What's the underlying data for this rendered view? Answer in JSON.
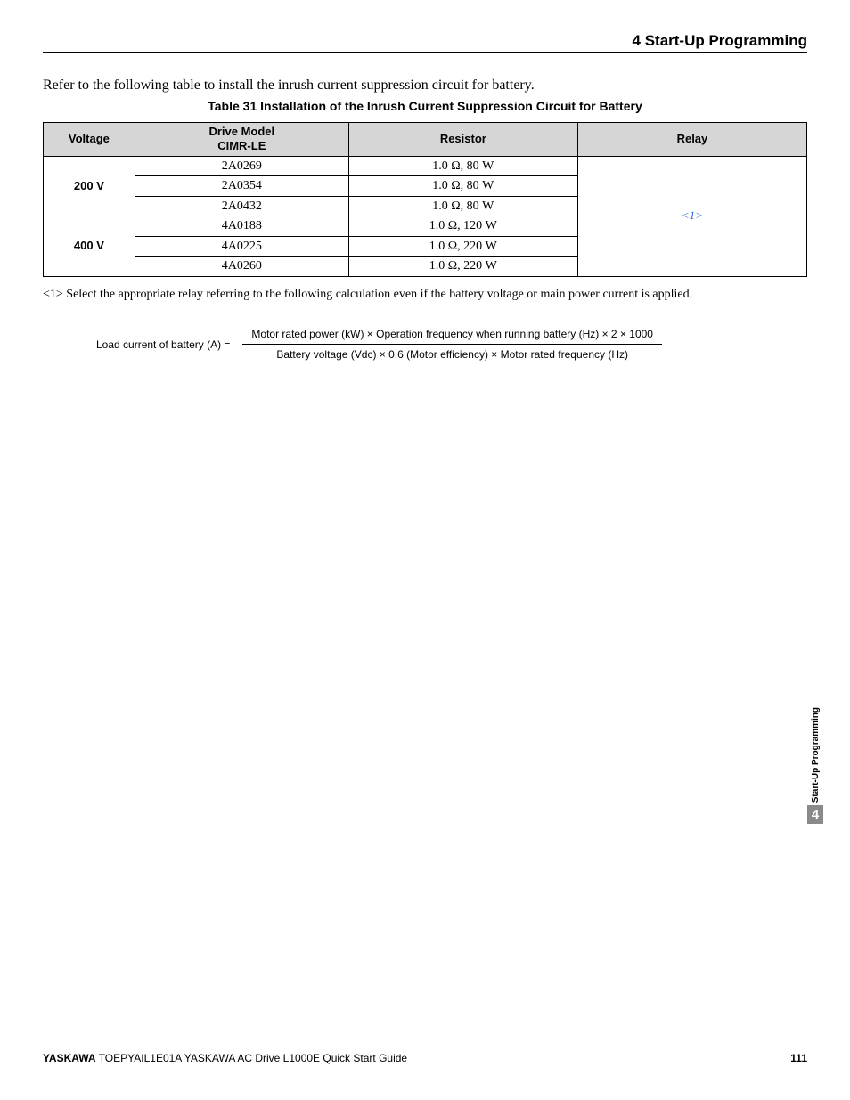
{
  "header": {
    "section": "4  Start-Up Programming"
  },
  "intro": "Refer to the following table to install the inrush current suppression circuit for battery.",
  "table": {
    "caption": "Table 31  Installation of the Inrush Current Suppression Circuit for Battery",
    "columns": [
      "Voltage",
      "Drive Model",
      "CIMR-LE",
      "Resistor",
      "Relay"
    ],
    "header_voltage": "Voltage",
    "header_model_l1": "Drive Model",
    "header_model_l2": "CIMR-LE",
    "header_resistor": "Resistor",
    "header_relay": "Relay",
    "relay_value": "<1>",
    "groups": [
      {
        "voltage": "200 V",
        "rows": [
          {
            "model": "2A0269",
            "resistor": "1.0 Ω, 80 W"
          },
          {
            "model": "2A0354",
            "resistor": "1.0 Ω, 80 W"
          },
          {
            "model": "2A0432",
            "resistor": "1.0 Ω, 80 W"
          }
        ]
      },
      {
        "voltage": "400 V",
        "rows": [
          {
            "model": "4A0188",
            "resistor": "1.0 Ω, 120 W"
          },
          {
            "model": "4A0225",
            "resistor": "1.0 Ω, 220 W"
          },
          {
            "model": "4A0260",
            "resistor": "1.0 Ω, 220 W"
          }
        ]
      }
    ]
  },
  "footnote": "<1> Select the appropriate relay referring to the following calculation even if the battery voltage or main power current is applied.",
  "formula": {
    "label": "Load current of battery (A) =  ",
    "numerator": "Motor rated power (kW) × Operation frequency when running battery (Hz) × 2 × 1000",
    "denominator": "Battery voltage (Vdc) × 0.6 (Motor efficiency) × Motor rated frequency (Hz)"
  },
  "sidetab": {
    "label": "Start-Up Programming",
    "chapter": "4"
  },
  "footer": {
    "brand": "YASKAWA",
    "doc": " TOEPYAIL1E01A YASKAWA AC Drive L1000E Quick Start Guide",
    "page": "111"
  }
}
